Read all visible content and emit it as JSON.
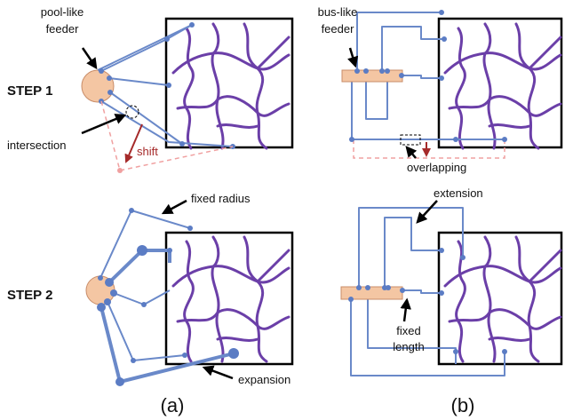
{
  "labels": {
    "pool_like_feeder": [
      "pool-like",
      "feeder"
    ],
    "bus_like_feeder": [
      "bus-like",
      "feeder"
    ],
    "step1": "STEP 1",
    "step2": "STEP 2",
    "intersection": "intersection",
    "shift": "shift",
    "overlapping": "overlapping",
    "fixed_radius": "fixed radius",
    "expansion": "expansion",
    "extension": "extension",
    "fixed_length": [
      "fixed",
      "length"
    ],
    "caption_a": "(a)",
    "caption_b": "(b)"
  },
  "colors": {
    "grid_line": "#6b3fa8",
    "feeder_line": "#6a89c9",
    "node": "#5b7cc4",
    "source_fill": "#f4c6a3",
    "shift_dashed": "#f0a0a0",
    "shift_arrow": "#a52a2a"
  }
}
